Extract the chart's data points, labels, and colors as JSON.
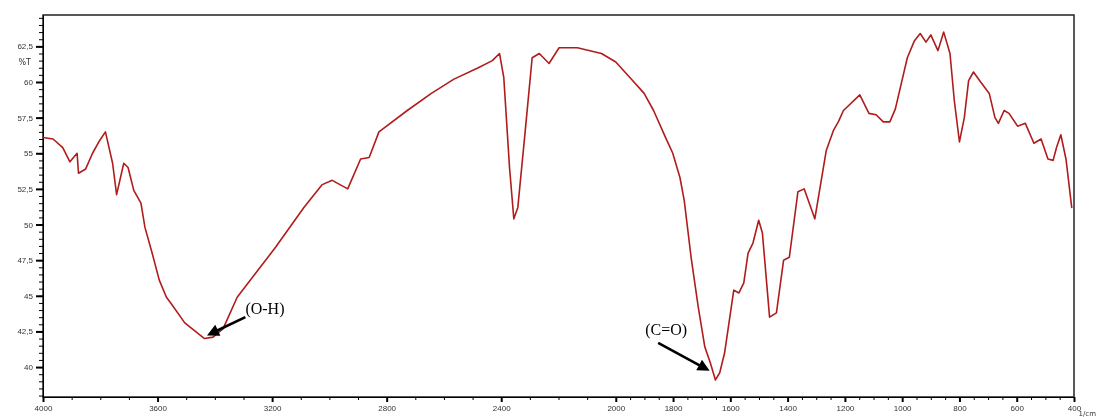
{
  "chart_data": {
    "type": "line",
    "xlabel": "1/cm",
    "ylabel": "%T",
    "xlim": [
      4000,
      400
    ],
    "ylim": [
      37.9,
      64.7
    ],
    "xticks": [
      4000,
      3600,
      3200,
      2800,
      2400,
      2000,
      1800,
      1600,
      1400,
      1200,
      1000,
      800,
      600,
      400
    ],
    "yticks": [
      40,
      {
        "value": 42.5,
        "label": "42,5"
      },
      45,
      {
        "value": 47.5,
        "label": "47,5"
      },
      50,
      {
        "value": 52.5,
        "label": "52,5"
      },
      55,
      {
        "value": 57.5,
        "label": "57,5"
      },
      60,
      {
        "value": 62.5,
        "label": "62,5"
      }
    ],
    "grid": false,
    "marker": "none",
    "line_style": "solid",
    "series": [
      {
        "color": "#b01c1c",
        "x": [
          4000,
          3965,
          3931,
          3906,
          3881,
          3876,
          3851,
          3827,
          3802,
          3782,
          3757,
          3743,
          3718,
          3703,
          3683,
          3658,
          3644,
          3619,
          3594,
          3569,
          3554,
          3505,
          3436,
          3406,
          3371,
          3322,
          3257,
          3188,
          3089,
          3025,
          2990,
          2936,
          2891,
          2861,
          2827,
          2728,
          2644,
          2565,
          2480,
          2431,
          2406,
          2391,
          2371,
          2356,
          2342,
          2317,
          2292,
          2267,
          2233,
          2198,
          2134,
          2050,
          2000,
          1950,
          1901,
          1868,
          1826,
          1801,
          1776,
          1761,
          1737,
          1712,
          1689,
          1670,
          1652,
          1637,
          1620,
          1588,
          1570,
          1553,
          1538,
          1521,
          1501,
          1488,
          1463,
          1439,
          1414,
          1394,
          1364,
          1342,
          1305,
          1265,
          1240,
          1223,
          1205,
          1148,
          1116,
          1091,
          1066,
          1043,
          1024,
          982,
          957,
          937,
          917,
          900,
          875,
          855,
          833,
          818,
          800,
          783,
          768,
          751,
          726,
          696,
          676,
          664,
          644,
          627,
          597,
          570,
          540,
          515,
          491,
          473,
          461,
          446,
          428,
          408
        ],
        "values": [
          56.1,
          56.0,
          55.4,
          54.4,
          55.0,
          53.6,
          53.9,
          55.0,
          55.9,
          56.5,
          54.3,
          52.1,
          54.3,
          54.0,
          52.4,
          51.5,
          49.8,
          48.0,
          46.1,
          44.9,
          44.5,
          43.1,
          42.0,
          42.1,
          42.7,
          44.9,
          46.6,
          48.4,
          51.2,
          52.8,
          53.1,
          52.5,
          54.6,
          54.7,
          56.5,
          58.0,
          59.2,
          60.2,
          61.0,
          61.5,
          62.0,
          60.3,
          54.0,
          50.4,
          51.2,
          56.4,
          61.7,
          62.0,
          61.3,
          62.4,
          62.4,
          62.0,
          61.4,
          60.3,
          59.2,
          58.0,
          56.1,
          55.0,
          53.3,
          51.7,
          47.7,
          44.2,
          41.4,
          40.3,
          39.1,
          39.6,
          41.0,
          45.4,
          45.2,
          45.9,
          48.0,
          48.7,
          50.3,
          49.4,
          43.5,
          43.8,
          47.5,
          47.7,
          52.3,
          52.5,
          50.4,
          55.2,
          56.6,
          57.2,
          58.0,
          59.1,
          57.8,
          57.7,
          57.2,
          57.2,
          58.1,
          61.7,
          62.9,
          63.4,
          62.8,
          63.3,
          62.2,
          63.5,
          62.0,
          58.7,
          55.8,
          57.5,
          60.1,
          60.7,
          60.0,
          59.2,
          57.5,
          57.1,
          58.0,
          57.8,
          56.9,
          57.1,
          55.7,
          56.0,
          54.6,
          54.5,
          55.4,
          56.3,
          54.6,
          51.2
        ]
      }
    ],
    "annotations": [
      {
        "text": "(O-H)",
        "x": 3440,
        "y": 42.1
      },
      {
        "text": "(C=O)",
        "x": 1660,
        "y": 39.6
      }
    ]
  }
}
